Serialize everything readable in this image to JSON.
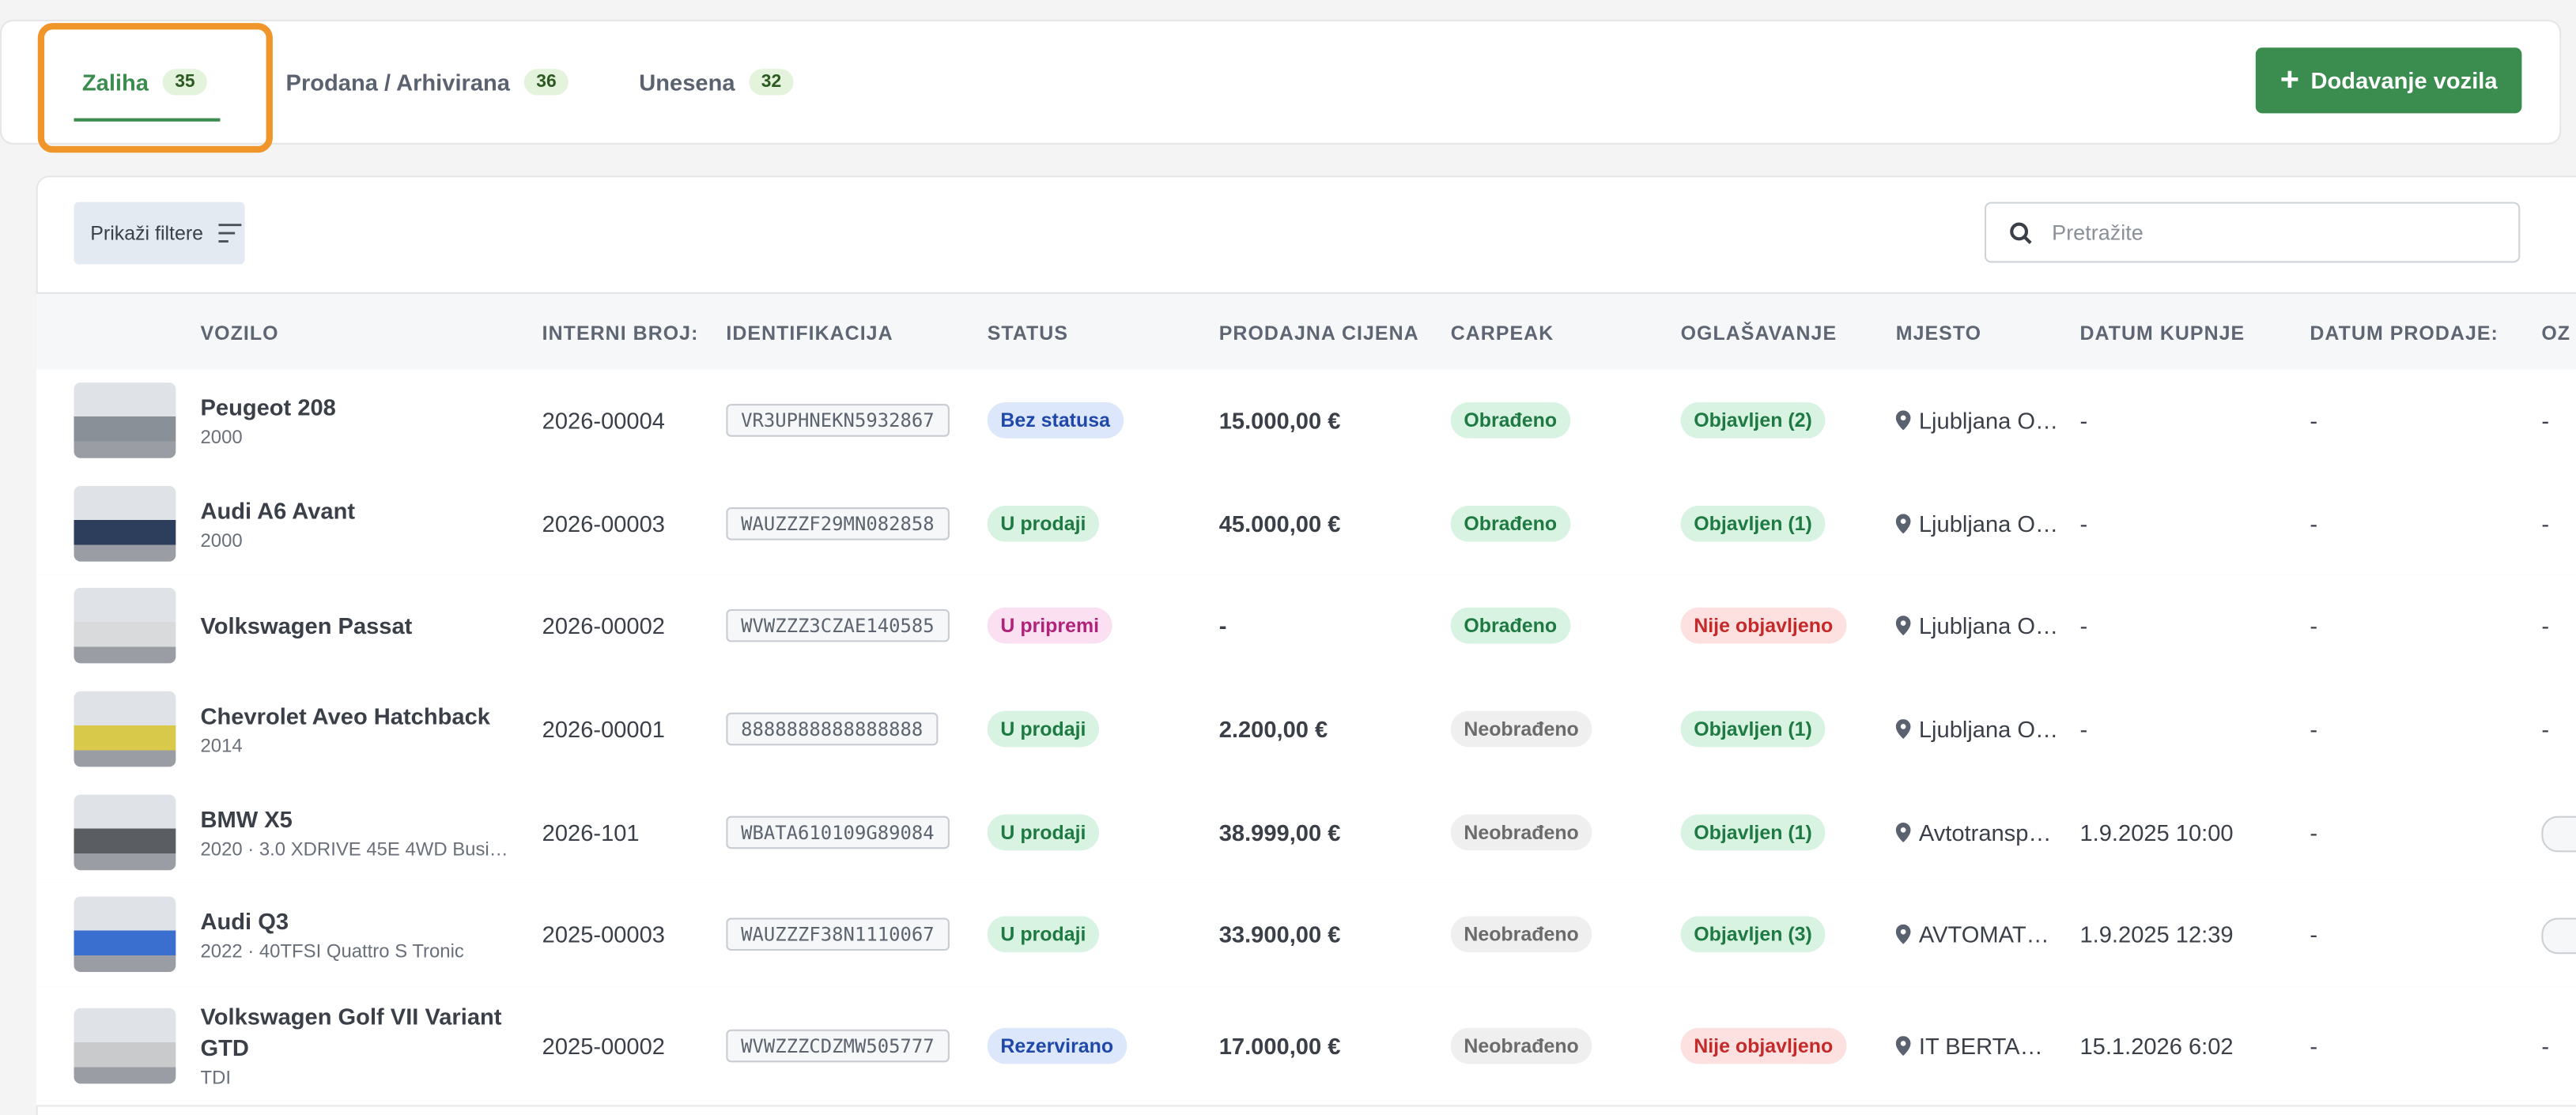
{
  "tabs": [
    {
      "label": "Zaliha",
      "count": "35"
    },
    {
      "label": "Prodana / Arhivirana",
      "count": "36"
    },
    {
      "label": "Unesena",
      "count": "32"
    }
  ],
  "add_button": "Dodavanje vozila",
  "filter_button": "Prikaži filtere",
  "search_placeholder": "Pretražite",
  "table": {
    "headers": [
      "VOZILO",
      "INTERNI BROJ:",
      "IDENTIFIKACIJA",
      "STATUS",
      "PRODAJNA CIJENA",
      "CARPEAK",
      "OGLAŠAVANJE",
      "MJESTO",
      "DATUM KUPNJE",
      "DATUM PRODAJE:",
      "OZ"
    ],
    "rows": [
      {
        "name": "Peugeot 208",
        "sub": "2000",
        "internal": "2026-00004",
        "vin": "VR3UPHNEKN5932867",
        "status": {
          "text": "Bez statusa",
          "bg": "#dce7fb",
          "fg": "#1f48a8"
        },
        "price": "15.000,00 €",
        "carpeak": {
          "text": "Obrađeno",
          "bg": "#d9f3e2",
          "fg": "#1e7a42"
        },
        "ad": {
          "text": "Objavljen (2)",
          "bg": "#d9f3e2",
          "fg": "#1e7a42"
        },
        "location": "Ljubljana O…",
        "buy": "-",
        "sell": "-",
        "extra": "-"
      },
      {
        "name": "Audi A6 Avant",
        "sub": "2000",
        "internal": "2026-00003",
        "vin": "WAUZZZF29MN082858",
        "status": {
          "text": "U prodaji",
          "bg": "#d9f3e2",
          "fg": "#1e7a42"
        },
        "price": "45.000,00 €",
        "carpeak": {
          "text": "Obrađeno",
          "bg": "#d9f3e2",
          "fg": "#1e7a42"
        },
        "ad": {
          "text": "Objavljen (1)",
          "bg": "#d9f3e2",
          "fg": "#1e7a42"
        },
        "location": "Ljubljana O…",
        "buy": "-",
        "sell": "-",
        "extra": "-"
      },
      {
        "name": "Volkswagen Passat",
        "sub": null,
        "internal": "2026-00002",
        "vin": "WVWZZZ3CZAE140585",
        "status": {
          "text": "U pripremi",
          "bg": "#fbe0f1",
          "fg": "#b0237a"
        },
        "price": "-",
        "carpeak": {
          "text": "Obrađeno",
          "bg": "#d9f3e2",
          "fg": "#1e7a42"
        },
        "ad": {
          "text": "Nije objavljeno",
          "bg": "#fde0e0",
          "fg": "#c42a2a"
        },
        "location": "Ljubljana O…",
        "buy": "-",
        "sell": "-",
        "extra": "-"
      },
      {
        "name": "Chevrolet Aveo Hatchback",
        "sub": "2014",
        "internal": "2026-00001",
        "vin": "8888888888888888",
        "status": {
          "text": "U prodaji",
          "bg": "#d9f3e2",
          "fg": "#1e7a42"
        },
        "price": "2.200,00 €",
        "carpeak": {
          "text": "Neobrađeno",
          "bg": "#efefef",
          "fg": "#6b6b6b"
        },
        "ad": {
          "text": "Objavljen (1)",
          "bg": "#d9f3e2",
          "fg": "#1e7a42"
        },
        "location": "Ljubljana O…",
        "buy": "-",
        "sell": "-",
        "extra": "-"
      },
      {
        "name": "BMW X5",
        "sub": "2020 · 3.0 XDRIVE 45E 4WD Busi…",
        "internal": "2026-101",
        "vin": "WBATA610109G89084",
        "status": {
          "text": "U prodaji",
          "bg": "#d9f3e2",
          "fg": "#1e7a42"
        },
        "price": "38.999,00 €",
        "carpeak": {
          "text": "Neobrađeno",
          "bg": "#efefef",
          "fg": "#6b6b6b"
        },
        "ad": {
          "text": "Objavljen (1)",
          "bg": "#d9f3e2",
          "fg": "#1e7a42"
        },
        "location": "Avtotransp…",
        "buy": "1.9.2025 10:00",
        "sell": "-",
        "extra": null
      },
      {
        "name": "Audi Q3",
        "sub": "2022 · 40TFSI Quattro S Tronic",
        "internal": "2025-00003",
        "vin": "WAUZZZF38N1110067",
        "status": {
          "text": "U prodaji",
          "bg": "#d9f3e2",
          "fg": "#1e7a42"
        },
        "price": "33.900,00 €",
        "carpeak": {
          "text": "Neobrađeno",
          "bg": "#efefef",
          "fg": "#6b6b6b"
        },
        "ad": {
          "text": "Objavljen (3)",
          "bg": "#d9f3e2",
          "fg": "#1e7a42"
        },
        "location": "AVTOMAT…",
        "buy": "1.9.2025 12:39",
        "sell": "-",
        "extra": null
      },
      {
        "name": "Volkswagen Golf VII Variant GTD",
        "sub": "TDI",
        "internal": "2025-00002",
        "vin": "WVWZZZCDZMW505777",
        "status": {
          "text": "Rezervirano",
          "bg": "#dce7fb",
          "fg": "#1f48a8"
        },
        "price": "17.000,00 €",
        "carpeak": {
          "text": "Neobrađeno",
          "bg": "#efefef",
          "fg": "#6b6b6b"
        },
        "ad": {
          "text": "Nije objavljeno",
          "bg": "#fde0e0",
          "fg": "#c42a2a"
        },
        "location": "IT BERTA…",
        "buy": "15.1.2026 6:02",
        "sell": "-",
        "extra": "-"
      }
    ]
  }
}
